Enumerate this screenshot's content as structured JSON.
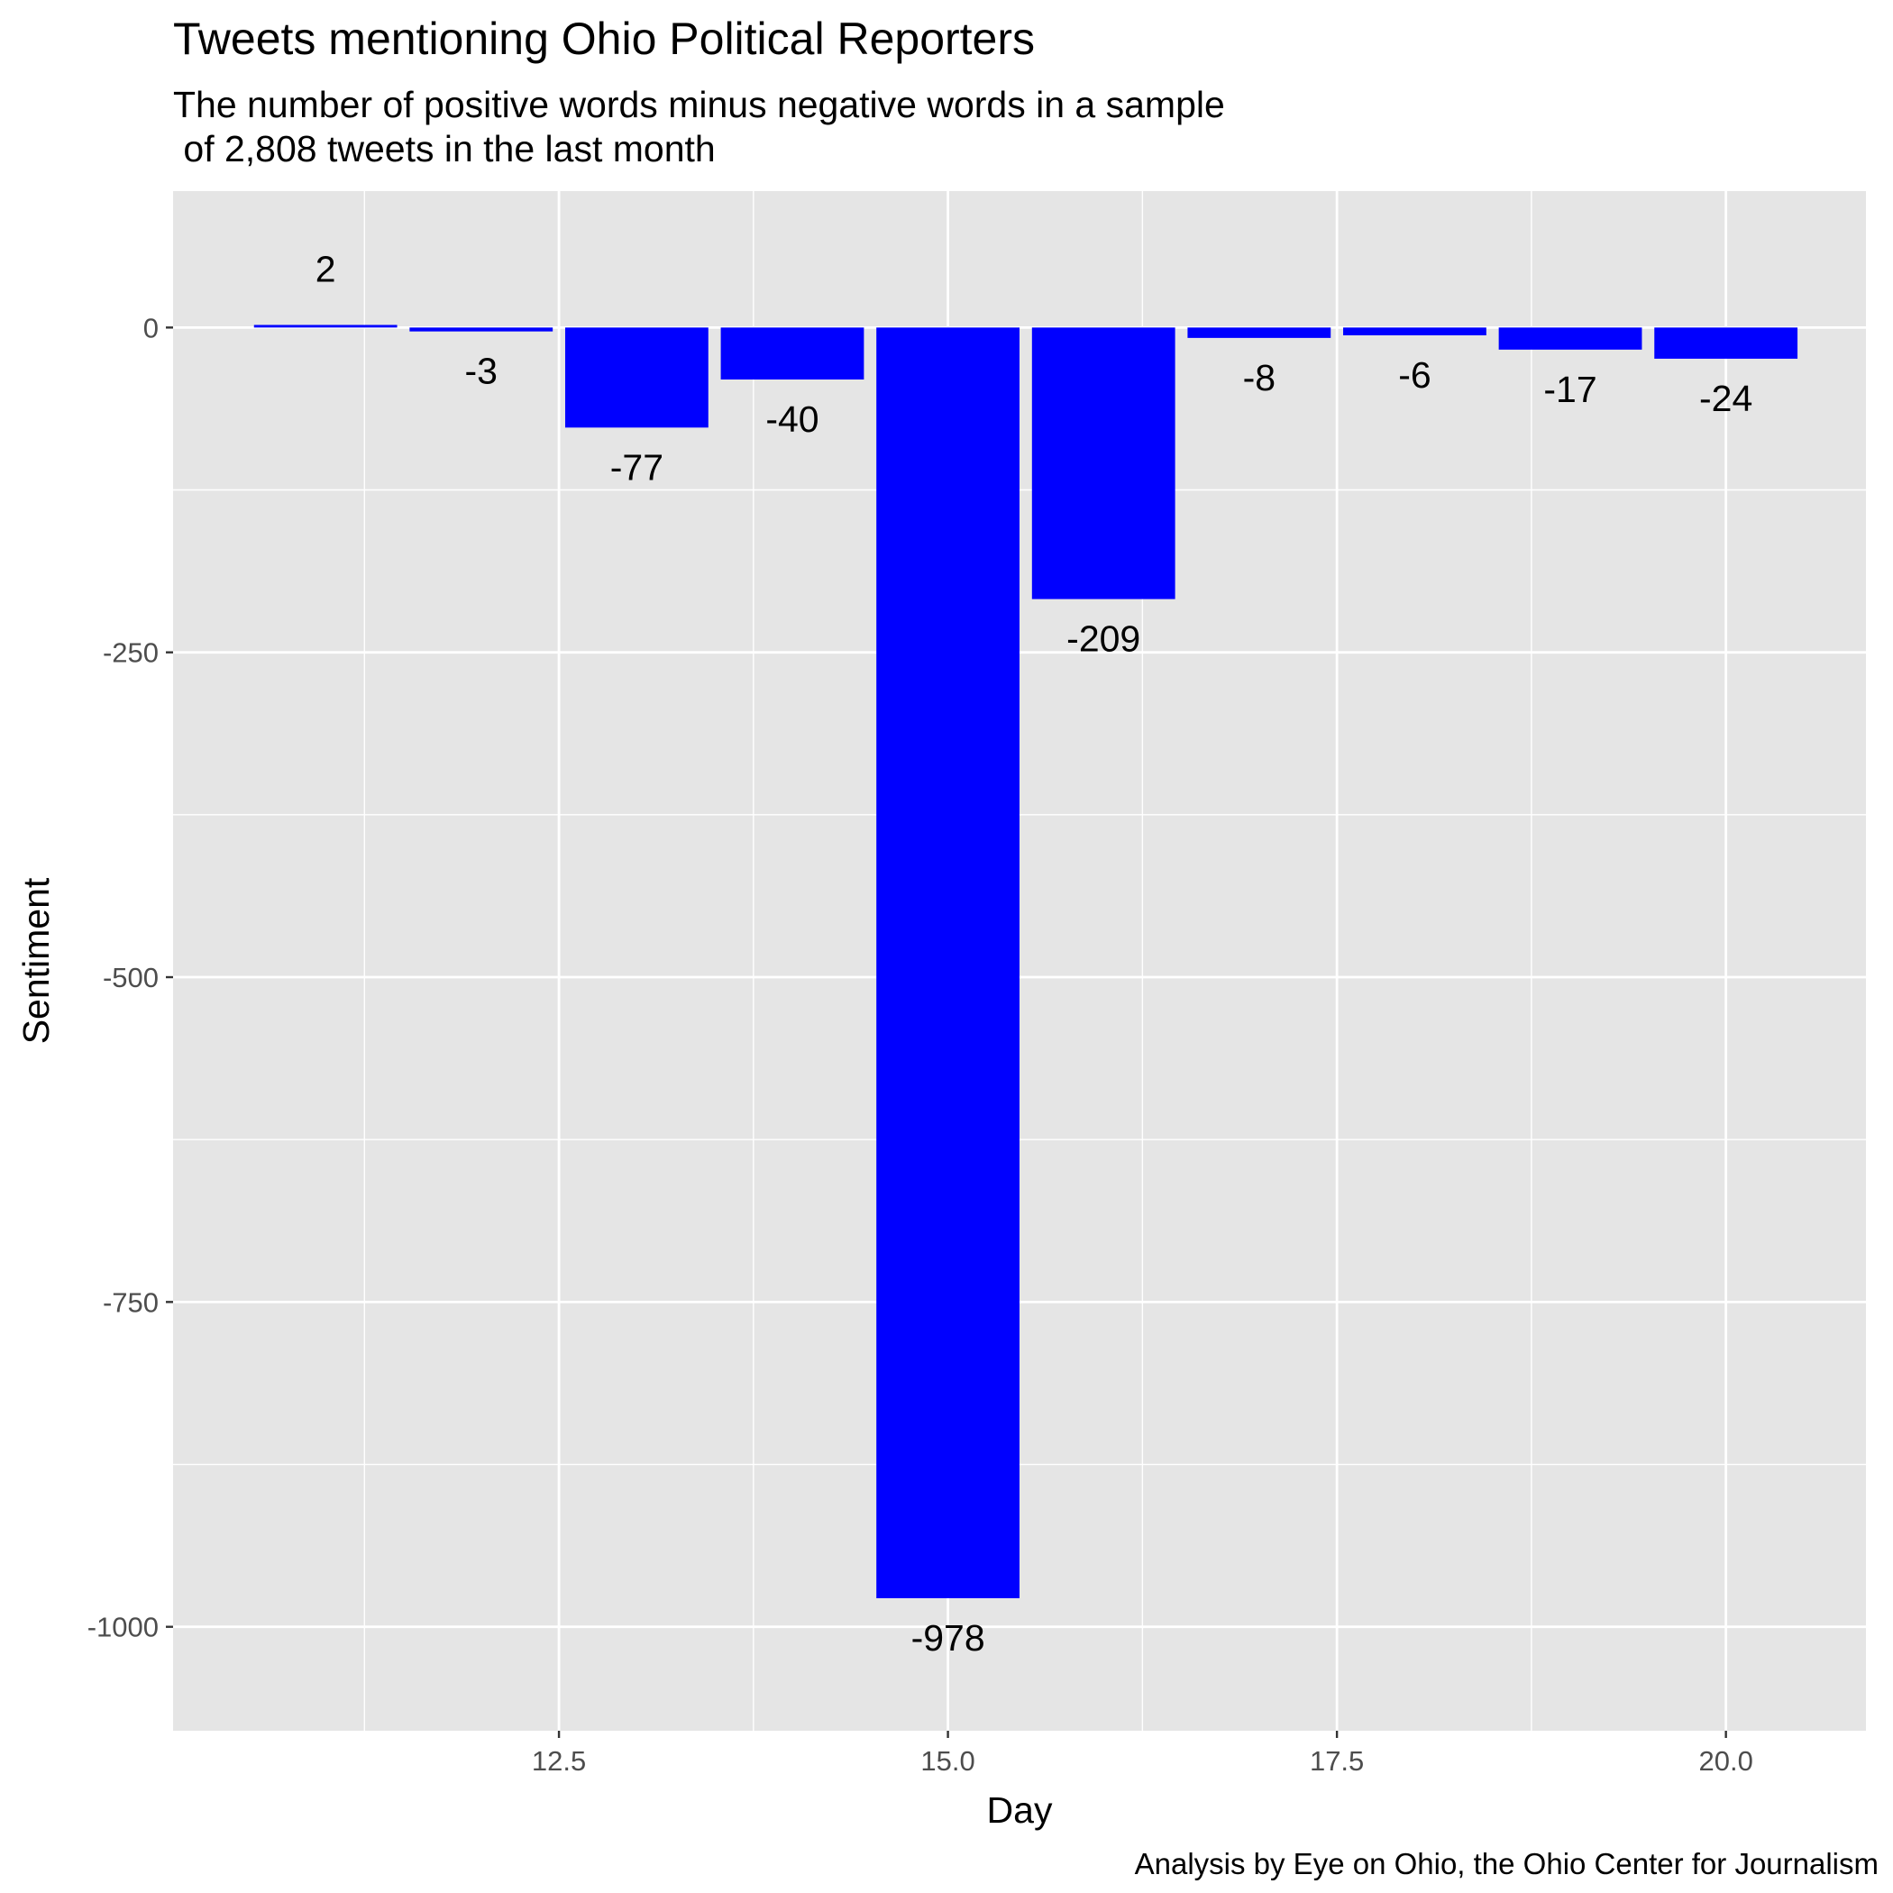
{
  "header": {
    "title": "Tweets mentioning Ohio Political Reporters",
    "subtitle": "The number of positive words minus negative words in a sample\n of 2,808 tweets in the last month"
  },
  "caption": "Analysis by Eye on Ohio, the Ohio Center for Journalism",
  "chart_data": {
    "type": "bar",
    "title": "Tweets mentioning Ohio Political Reporters",
    "subtitle": "The number of positive words minus negative words in a sample\n of 2,808 tweets in the last month",
    "caption": "Analysis by Eye on Ohio, the Ohio Center for Journalism",
    "xlabel": "Day",
    "ylabel": "Sentiment",
    "x": [
      11,
      12,
      13,
      14,
      15,
      16,
      17,
      18,
      19,
      20
    ],
    "values": [
      2,
      -3,
      -77,
      -40,
      -978,
      -209,
      -8,
      -6,
      -17,
      -24
    ],
    "data_labels": [
      "2",
      "-3",
      "-77",
      "-40",
      "-978",
      "-209",
      "-8",
      "-6",
      "-17",
      "-24"
    ],
    "bar_width": 0.92,
    "xlim": [
      10.02,
      20.9
    ],
    "ylim": [
      -1080,
      105
    ],
    "xticks": [
      12.5,
      15.0,
      17.5,
      20.0
    ],
    "xtick_labels": [
      "12.5",
      "15.0",
      "17.5",
      "20.0"
    ],
    "yticks": [
      0,
      -250,
      -500,
      -750,
      -1000
    ],
    "ytick_labels": [
      "0",
      "-250",
      "-500",
      "-750",
      "-1000"
    ],
    "grid": true,
    "bar_color": "#0000FF",
    "panel_background": "#E5E5E5",
    "grid_color": "#FFFFFF"
  }
}
